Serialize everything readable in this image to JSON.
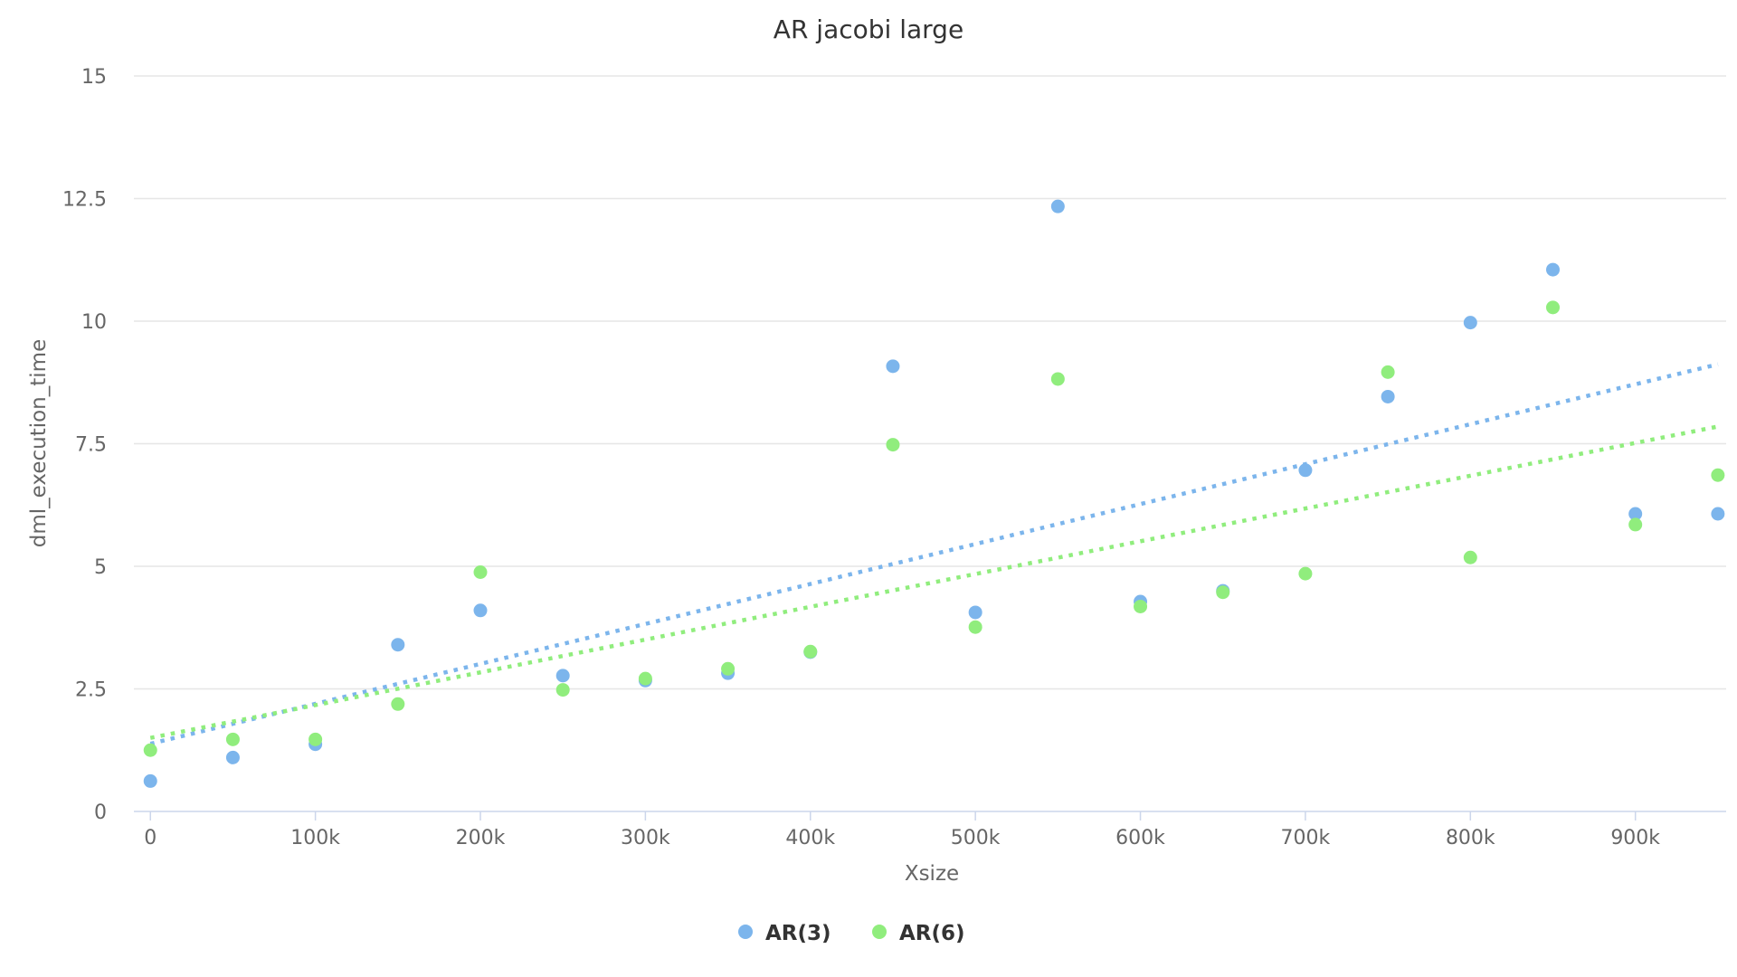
{
  "chart_data": {
    "type": "scatter",
    "title": "AR jacobi large",
    "xlabel": "Xsize",
    "ylabel": "dml_execution_time",
    "xlim": [
      -10000,
      955000
    ],
    "ylim": [
      0,
      15
    ],
    "x_ticks": [
      0,
      100000,
      200000,
      300000,
      400000,
      500000,
      600000,
      700000,
      800000,
      900000
    ],
    "x_tick_labels": [
      "0",
      "100k",
      "200k",
      "300k",
      "400k",
      "500k",
      "600k",
      "700k",
      "800k",
      "900k"
    ],
    "y_ticks": [
      0,
      2.5,
      5,
      7.5,
      10,
      12.5,
      15
    ],
    "y_tick_labels": [
      "0",
      "2.5",
      "5",
      "7.5",
      "10",
      "12.5",
      "15"
    ],
    "grid": "horizontal",
    "legend_position": "bottom-center",
    "trendlines": "dotted linear",
    "series": [
      {
        "name": "AR(3)",
        "color": "#7cb5ec",
        "points": [
          [
            0,
            0.62
          ],
          [
            50000,
            1.1
          ],
          [
            100000,
            1.37
          ],
          [
            150000,
            3.4
          ],
          [
            200000,
            4.1
          ],
          [
            250000,
            2.77
          ],
          [
            300000,
            2.67
          ],
          [
            350000,
            2.82
          ],
          [
            400000,
            3.25
          ],
          [
            450000,
            9.08
          ],
          [
            500000,
            4.06
          ],
          [
            550000,
            12.34
          ],
          [
            600000,
            4.28
          ],
          [
            650000,
            4.5
          ],
          [
            700000,
            6.96
          ],
          [
            750000,
            8.46
          ],
          [
            800000,
            9.97
          ],
          [
            850000,
            11.05
          ],
          [
            900000,
            6.07
          ],
          [
            950000,
            6.07
          ]
        ],
        "trend": [
          [
            0,
            1.38
          ],
          [
            950000,
            9.12
          ]
        ]
      },
      {
        "name": "AR(6)",
        "color": "#90ed7d",
        "points": [
          [
            0,
            1.25
          ],
          [
            50000,
            1.47
          ],
          [
            100000,
            1.47
          ],
          [
            150000,
            2.19
          ],
          [
            200000,
            4.88
          ],
          [
            250000,
            2.48
          ],
          [
            300000,
            2.71
          ],
          [
            350000,
            2.91
          ],
          [
            400000,
            3.26
          ],
          [
            450000,
            7.48
          ],
          [
            500000,
            3.76
          ],
          [
            550000,
            8.82
          ],
          [
            600000,
            4.18
          ],
          [
            650000,
            4.47
          ],
          [
            700000,
            4.85
          ],
          [
            750000,
            8.96
          ],
          [
            800000,
            5.18
          ],
          [
            850000,
            10.28
          ],
          [
            900000,
            5.85
          ],
          [
            950000,
            6.86
          ]
        ],
        "trend": [
          [
            0,
            1.5
          ],
          [
            950000,
            7.85
          ]
        ]
      }
    ]
  }
}
